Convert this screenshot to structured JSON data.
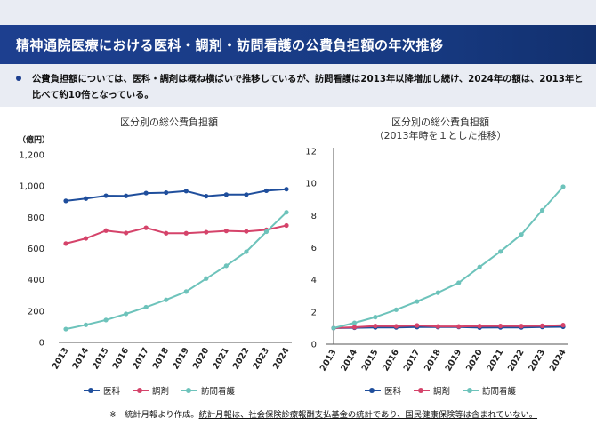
{
  "header": {
    "title": "精神通院医療における医科・調剤・訪問看護の公費負担額の年次推移"
  },
  "summary": {
    "text": "公費負担額については、医科・調剤は概ね横ばいで推移しているが、訪問看護は2013年以降増加し続け、2024年の額は、2013年と比べて約10倍となっている。"
  },
  "colors": {
    "header": "#1d3f8f",
    "series_iryo": "#1f4e9c",
    "series_chozai": "#d5436a",
    "series_houmon": "#6dc3bb"
  },
  "footnote": {
    "prefix": "※　統計月報より作成。",
    "underlined": "統計月報は、社会保険診療報酬支払基金の統計であり、国民健康保険等は含まれていない。"
  },
  "chart_data": [
    {
      "type": "line",
      "title": "区分別の総公費負担額",
      "ylabel": "（億円）",
      "x": [
        "2013",
        "2014",
        "2015",
        "2016",
        "2017",
        "2018",
        "2019",
        "2020",
        "2021",
        "2022",
        "2023",
        "2024"
      ],
      "ylim": [
        0,
        1200
      ],
      "yticks": [
        "0",
        "200",
        "400",
        "600",
        "800",
        "1,000",
        "1,200"
      ],
      "grid": false,
      "legend": "bottom",
      "series": [
        {
          "name": "医科",
          "values": [
            905,
            920,
            938,
            937,
            955,
            958,
            968,
            935,
            945,
            945,
            970,
            980
          ]
        },
        {
          "name": "調剤",
          "values": [
            632,
            665,
            715,
            700,
            733,
            698,
            698,
            705,
            713,
            710,
            720,
            748
          ]
        },
        {
          "name": "訪問看護",
          "values": [
            85,
            112,
            143,
            182,
            225,
            272,
            325,
            408,
            490,
            580,
            708,
            832
          ]
        }
      ]
    },
    {
      "type": "line",
      "title": "区分別の総公費負担額\n（2013年時を１とした推移）",
      "x": [
        "2013",
        "2014",
        "2015",
        "2016",
        "2017",
        "2018",
        "2019",
        "2020",
        "2021",
        "2022",
        "2023",
        "2024"
      ],
      "ylim": [
        0,
        12
      ],
      "yticks": [
        "0",
        "2",
        "4",
        "6",
        "8",
        "10",
        "12"
      ],
      "grid": false,
      "legend": "bottom",
      "series": [
        {
          "name": "医科",
          "values": [
            1.0,
            1.02,
            1.04,
            1.04,
            1.06,
            1.06,
            1.07,
            1.03,
            1.04,
            1.04,
            1.07,
            1.08
          ]
        },
        {
          "name": "調剤",
          "values": [
            1.0,
            1.05,
            1.13,
            1.11,
            1.16,
            1.1,
            1.1,
            1.12,
            1.13,
            1.12,
            1.14,
            1.18
          ]
        },
        {
          "name": "訪問看護",
          "values": [
            1.0,
            1.32,
            1.68,
            2.14,
            2.65,
            3.2,
            3.82,
            4.8,
            5.76,
            6.82,
            8.33,
            9.79
          ]
        }
      ]
    }
  ]
}
